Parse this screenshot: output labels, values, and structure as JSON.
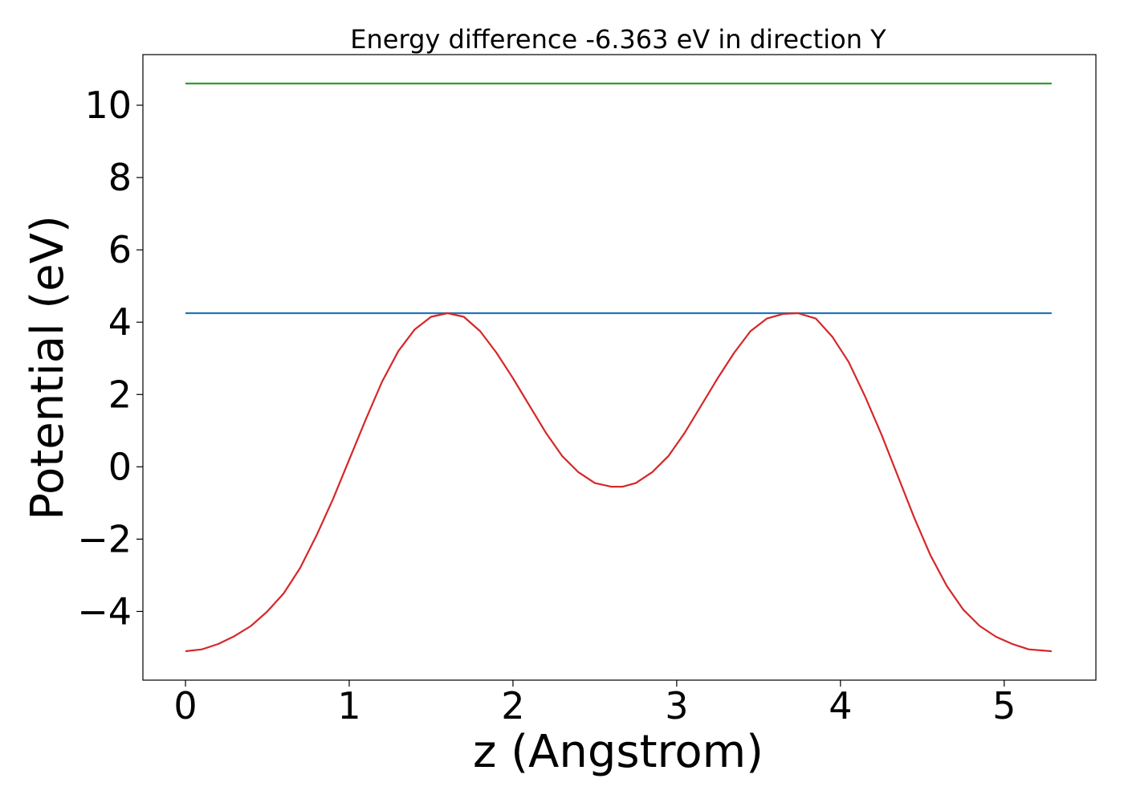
{
  "chart_data": {
    "type": "line",
    "title": "Energy difference -6.363 eV in direction Y",
    "xlabel": "z (Angstrom)",
    "ylabel": "Potential (eV)",
    "xlim": [
      -0.26,
      5.56
    ],
    "ylim": [
      -5.9,
      11.4
    ],
    "xticks": [
      0,
      1,
      2,
      3,
      4,
      5
    ],
    "xtick_labels": [
      "0",
      "1",
      "2",
      "3",
      "4",
      "5"
    ],
    "yticks": [
      -4,
      -2,
      0,
      2,
      4,
      6,
      8,
      10
    ],
    "ytick_labels": [
      "−4",
      "−2",
      "0",
      "2",
      "4",
      "6",
      "8",
      "10"
    ],
    "grid": false,
    "series": [
      {
        "color": "#2ca02c",
        "x": [
          0,
          5.29
        ],
        "y": [
          10.6,
          10.6
        ]
      },
      {
        "color": "#1f77b4",
        "x": [
          0,
          5.29
        ],
        "y": [
          4.25,
          4.25
        ]
      },
      {
        "color": "#d62728",
        "x": [
          0,
          0.1,
          0.2,
          0.3,
          0.4,
          0.5,
          0.6,
          0.7,
          0.8,
          0.9,
          1.0,
          1.1,
          1.2,
          1.3,
          1.4,
          1.5,
          1.6,
          1.7,
          1.8,
          1.9,
          2.0,
          2.1,
          2.2,
          2.3,
          2.4,
          2.5,
          2.6,
          2.67,
          2.75,
          2.85,
          2.95,
          3.05,
          3.15,
          3.25,
          3.35,
          3.45,
          3.55,
          3.65,
          3.74,
          3.85,
          3.95,
          4.05,
          4.15,
          4.25,
          4.35,
          4.45,
          4.55,
          4.65,
          4.75,
          4.85,
          4.95,
          5.05,
          5.15,
          5.29
        ],
        "y": [
          -5.1,
          -5.05,
          -4.9,
          -4.68,
          -4.4,
          -4.0,
          -3.5,
          -2.8,
          -1.9,
          -0.9,
          0.2,
          1.3,
          2.35,
          3.2,
          3.8,
          4.15,
          4.25,
          4.15,
          3.75,
          3.15,
          2.45,
          1.7,
          0.95,
          0.3,
          -0.15,
          -0.45,
          -0.55,
          -0.55,
          -0.45,
          -0.15,
          0.3,
          0.95,
          1.7,
          2.45,
          3.15,
          3.75,
          4.1,
          4.23,
          4.25,
          4.1,
          3.6,
          2.9,
          1.95,
          0.9,
          -0.25,
          -1.4,
          -2.45,
          -3.3,
          -3.95,
          -4.4,
          -4.7,
          -4.9,
          -5.05,
          -5.1
        ]
      }
    ]
  }
}
